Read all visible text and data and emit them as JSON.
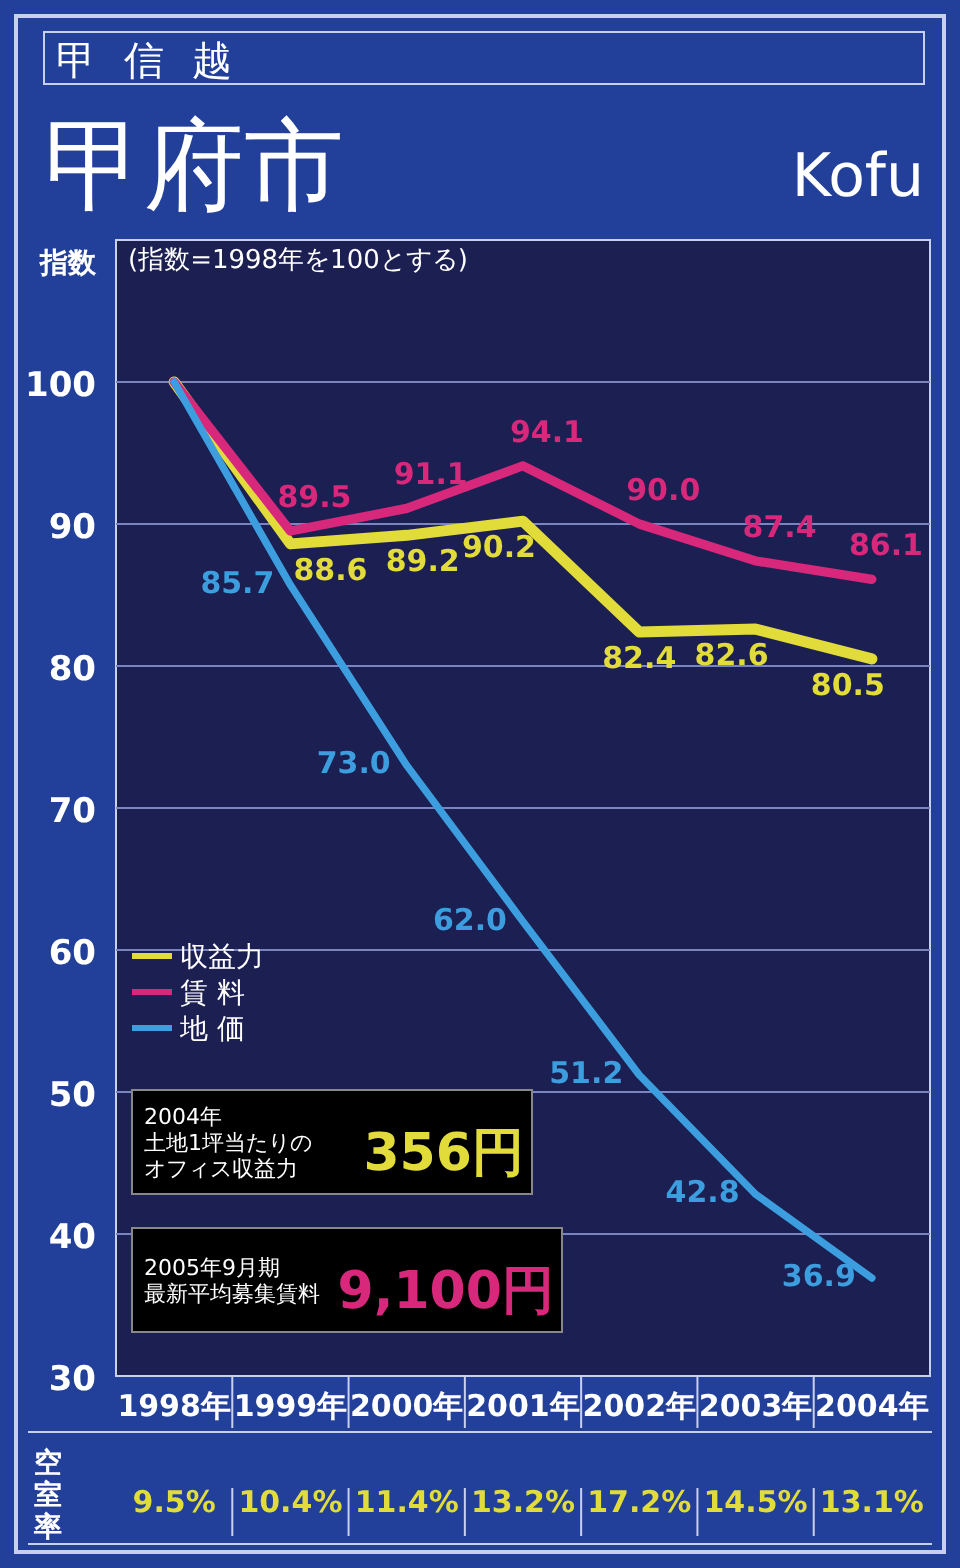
{
  "chart_data": [
    {
      "type": "line",
      "title": "甲府市",
      "subtitle": "Kofu",
      "ylabel": "指数",
      "annotations": [
        "甲信越",
        "(指数=1998年を100とする)",
        "2004年",
        "土地1坪当たりの",
        "オフィス収益力",
        "356円",
        "2005年9月期",
        "最新平均募集賃料",
        "9,100円"
      ],
      "categories": [
        "1998年",
        "1999年",
        "2000年",
        "2001年",
        "2002年",
        "2003年",
        "2004年"
      ],
      "series": [
        {
          "name": "収益力",
          "color": "#e2dc3a",
          "values": [
            100,
            88.6,
            89.2,
            90.2,
            82.4,
            82.6,
            80.5
          ],
          "value_labels": [
            null,
            "88.6",
            "89.2",
            "90.2",
            "82.4",
            "82.6",
            "80.5"
          ]
        },
        {
          "name": "賃 料",
          "color": "#d8287c",
          "values": [
            100,
            89.5,
            91.1,
            94.1,
            90.0,
            87.4,
            86.1
          ],
          "value_labels": [
            null,
            "89.5",
            "91.1",
            "94.1",
            "90.0",
            "87.4",
            "86.1"
          ]
        },
        {
          "name": "地 価",
          "color": "#3c9ede",
          "values": [
            100,
            85.7,
            73.0,
            62.0,
            51.2,
            42.8,
            36.9
          ],
          "value_labels": [
            null,
            "85.7",
            "73.0",
            "62.0",
            "51.2",
            "42.8",
            "36.9"
          ]
        }
      ],
      "ylim": [
        30,
        110
      ],
      "yticks": [
        30,
        40,
        50,
        60,
        70,
        80,
        90,
        100
      ],
      "grid": true,
      "legend": "left",
      "marker": "none",
      "line_style": "solid"
    },
    {
      "type": "other",
      "title": "空室率",
      "values": [
        9.5,
        10.4,
        11.4,
        13.2,
        17.2,
        14.5,
        13.1
      ],
      "value_labels": [
        "9.5%",
        "10.4%",
        "11.4%",
        "13.2%",
        "17.2%",
        "14.5%",
        "13.1%"
      ],
      "color": "#e2dc3a"
    }
  ]
}
